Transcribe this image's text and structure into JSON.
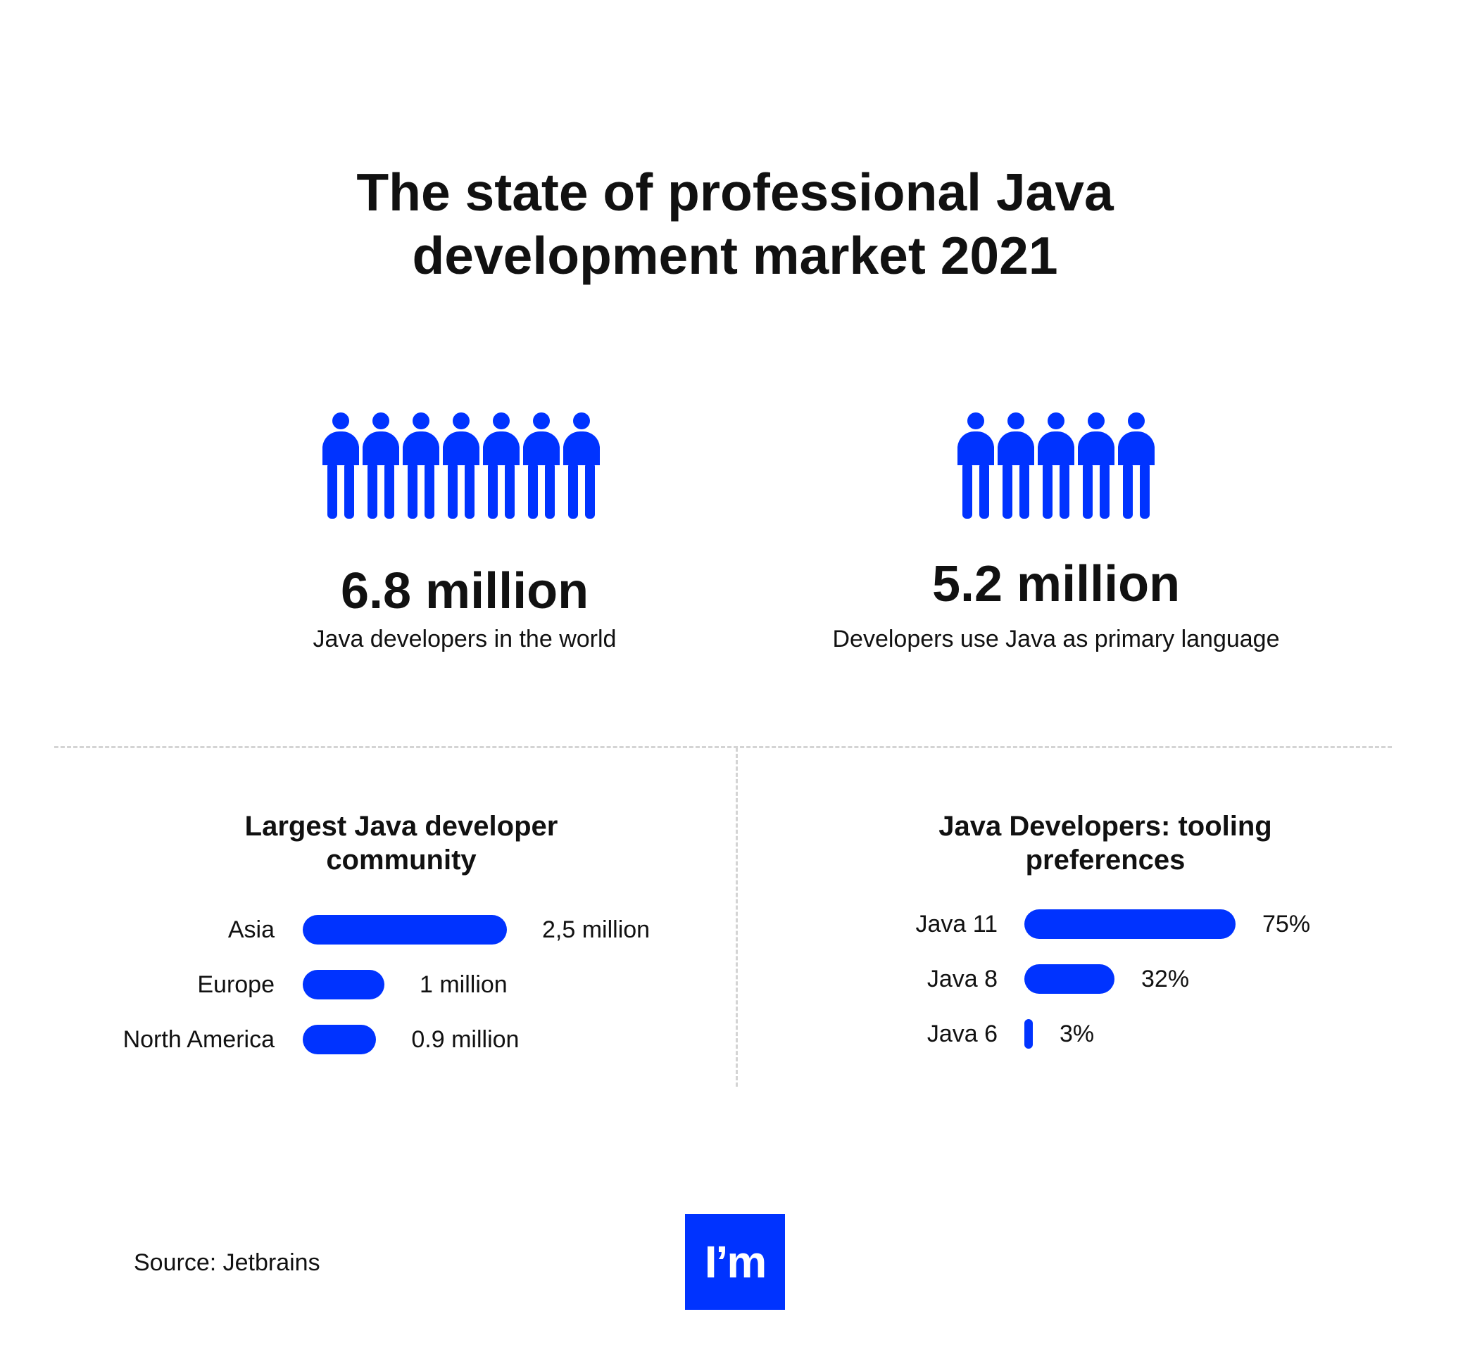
{
  "title": "The state of professional Java\ndevelopment market 2021",
  "colors": {
    "accent": "#0033ff",
    "text": "#111111",
    "divider": "#d4d4d4"
  },
  "stats": [
    {
      "icon": "person-icon",
      "icon_count": 7,
      "value": "6.8 million",
      "label": "Java developers in the world"
    },
    {
      "icon": "person-icon",
      "icon_count": 5,
      "value": "5.2 million",
      "label": "Developers use Java as primary language"
    }
  ],
  "chart_data": [
    {
      "type": "bar",
      "orientation": "horizontal",
      "title": "Largest Java developer\ncommunity",
      "categories": [
        "Asia",
        "Europe",
        "North America"
      ],
      "values": [
        2.5,
        1,
        0.9
      ],
      "value_labels": [
        "2,5 million",
        "1 million",
        "0.9 million"
      ],
      "unit": "million"
    },
    {
      "type": "bar",
      "orientation": "horizontal",
      "title": "Java Developers: tooling\npreferences",
      "categories": [
        "Java 11",
        "Java 8",
        "Java 6"
      ],
      "values": [
        75,
        32,
        3
      ],
      "value_labels": [
        "75%",
        "32%",
        "3%"
      ],
      "unit": "%"
    }
  ],
  "source": "Source: Jetbrains",
  "logo_text": "I’m"
}
